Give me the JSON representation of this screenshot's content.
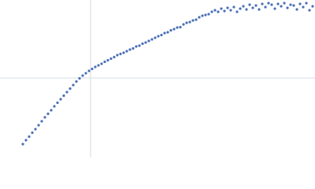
{
  "chart_data": {
    "type": "scatter",
    "xlim": [
      0,
      400
    ],
    "ylim": [
      0,
      200
    ],
    "xticks": [
      115
    ],
    "yticks": [
      101
    ],
    "grid": true,
    "series": [
      {
        "color": "#4a6fb5",
        "x": [
          29,
          33,
          37,
          41,
          45,
          49,
          53,
          57,
          61,
          65,
          69,
          73,
          77,
          81,
          85,
          89,
          93,
          97,
          101,
          105,
          109,
          113,
          117,
          121,
          125,
          129,
          133,
          137,
          141,
          145,
          149,
          153,
          157,
          161,
          165,
          169,
          173,
          177,
          181,
          185,
          189,
          193,
          197,
          201,
          205,
          209,
          213,
          217,
          221,
          225,
          229,
          233,
          237,
          241,
          245,
          249,
          253,
          257,
          261,
          265,
          269,
          273,
          277,
          281,
          285,
          289,
          293,
          297,
          301,
          305,
          309,
          313,
          317,
          321,
          325,
          329,
          333,
          337,
          341,
          345,
          349,
          353,
          357,
          361,
          365,
          369,
          373,
          377,
          381,
          385,
          389,
          393,
          397
        ],
        "y": [
          17,
          22,
          26.5,
          31.5,
          36,
          41,
          46,
          51,
          55.5,
          60,
          65,
          69.5,
          74,
          78.5,
          83,
          87.5,
          92,
          96.5,
          100.5,
          104,
          107,
          110,
          112.5,
          115,
          117,
          119,
          121.5,
          123.5,
          125.5,
          127.5,
          130,
          131.5,
          133,
          135,
          137,
          138.5,
          141,
          142,
          144.5,
          146,
          148,
          150,
          152,
          154,
          155.5,
          158,
          159,
          161.5,
          163,
          165,
          165.5,
          169,
          171,
          172,
          174,
          175,
          178,
          180,
          181,
          182,
          185,
          187,
          185,
          189,
          186,
          190,
          187,
          191,
          185,
          189,
          192,
          188,
          194,
          190,
          193,
          188,
          195,
          191,
          196,
          194,
          189,
          195,
          192,
          196,
          190,
          194,
          193,
          188,
          195,
          191,
          196,
          187,
          192
        ]
      }
    ]
  }
}
